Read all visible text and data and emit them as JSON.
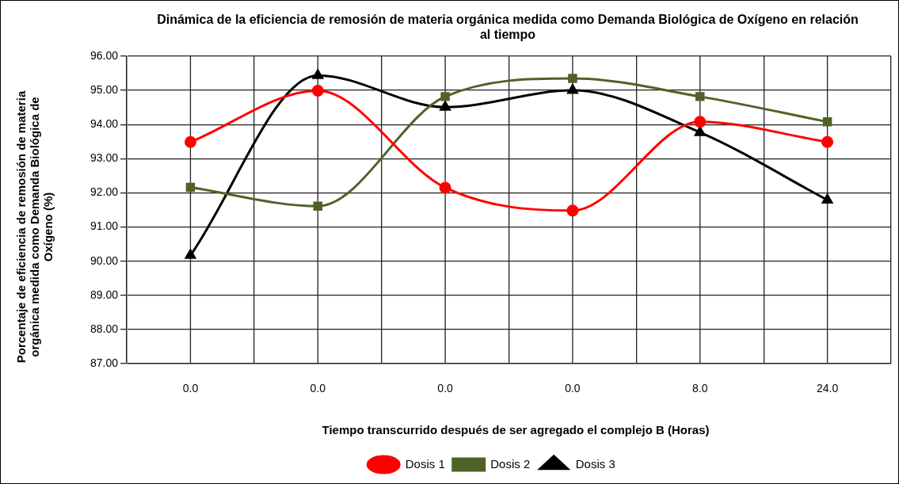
{
  "chart_data": {
    "type": "line",
    "title": "Dinámica de la eficiencia de remosión de materia orgánica medida como Demanda Biológica de Oxígeno en relación al tiempo",
    "xlabel": "Tiempo transcurrido  después de ser agregado el complejo B (Horas)",
    "ylabel": "Porcentaje de eficiencia de remosión de materia orgánica medida como Demanda Biológica de Oxígeno (%)",
    "categories": [
      "0.0",
      "0.0",
      "0.0",
      "0.0",
      "8.0",
      "24.0"
    ],
    "series": [
      {
        "name": "Dosis 1",
        "color": "#ff0000",
        "marker": "circle",
        "values": [
          93.49,
          94.99,
          92.15,
          91.48,
          94.08,
          93.49
        ]
      },
      {
        "name": "Dosis 2",
        "color": "#4f6228",
        "marker": "square",
        "values": [
          92.16,
          91.61,
          94.82,
          95.35,
          94.82,
          94.08
        ]
      },
      {
        "name": "Dosis 3",
        "color": "#000000",
        "marker": "triangle",
        "values": [
          90.17,
          95.44,
          94.51,
          95.0,
          93.77,
          91.79
        ]
      }
    ],
    "ylim": [
      87,
      96
    ],
    "yticks": [
      {
        "value": 87,
        "label": "87.00"
      },
      {
        "value": 88,
        "label": "88.00"
      },
      {
        "value": 89,
        "label": "89.00"
      },
      {
        "value": 90,
        "label": "90.00"
      },
      {
        "value": 91,
        "label": "91.00"
      },
      {
        "value": 92,
        "label": "92.00"
      },
      {
        "value": 93,
        "label": "93.00"
      },
      {
        "value": 94,
        "label": "94.00"
      },
      {
        "value": 95,
        "label": "95.00"
      },
      {
        "value": 96,
        "label": "96.00"
      }
    ],
    "grid": true,
    "legend": "bottom",
    "line_style": "solid"
  }
}
